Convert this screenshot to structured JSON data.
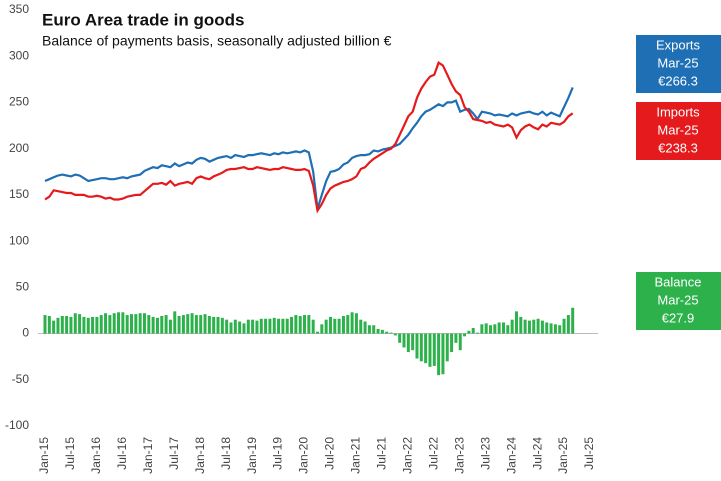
{
  "chart_data": {
    "type": "line-bar",
    "title": "Euro Area trade in goods",
    "subtitle": "Balance of payments basis, seasonally adjusted billion €",
    "categories": [
      "Jan-15",
      null,
      null,
      null,
      null,
      null,
      "Jul-15",
      null,
      null,
      null,
      null,
      null,
      "Jan-16",
      null,
      null,
      null,
      null,
      null,
      "Jul-16",
      null,
      null,
      null,
      null,
      null,
      "Jan-17",
      null,
      null,
      null,
      null,
      null,
      "Jul-17",
      null,
      null,
      null,
      null,
      null,
      "Jan-18",
      null,
      null,
      null,
      null,
      null,
      "Jul-18",
      null,
      null,
      null,
      null,
      null,
      "Jan-19",
      null,
      null,
      null,
      null,
      null,
      "Jul-19",
      null,
      null,
      null,
      null,
      null,
      "Jan-20",
      null,
      null,
      null,
      null,
      null,
      "Jul-20",
      null,
      null,
      null,
      null,
      null,
      "Jan-21",
      null,
      null,
      null,
      null,
      null,
      "Jul-21",
      null,
      null,
      null,
      null,
      null,
      "Jan-22",
      null,
      null,
      null,
      null,
      null,
      "Jul-22",
      null,
      null,
      null,
      null,
      null,
      "Jan-23",
      null,
      null,
      null,
      null,
      null,
      "Jul-23",
      null,
      null,
      null,
      null,
      null,
      "Jan-24",
      null,
      null,
      null,
      null,
      null,
      "Jul-24",
      null,
      null,
      null,
      null,
      null,
      "Jan-25",
      null,
      null,
      null,
      null,
      null,
      "Jul-25"
    ],
    "series": [
      {
        "name": "Exports",
        "kind": "line",
        "color": "#1f6fb5",
        "values": [
          165,
          167,
          169,
          171,
          172,
          171,
          170,
          172,
          171,
          168,
          165,
          166,
          167,
          168,
          168,
          167,
          167,
          168,
          169,
          168,
          170,
          171,
          172,
          176,
          178,
          180,
          179,
          182,
          181,
          180,
          184,
          181,
          183,
          185,
          184,
          188,
          190,
          189,
          186,
          188,
          190,
          191,
          192,
          190,
          193,
          192,
          191,
          193,
          193,
          194,
          195,
          194,
          193,
          195,
          194,
          196,
          195,
          196,
          197,
          196,
          198,
          196,
          175,
          135,
          150,
          165,
          175,
          176,
          178,
          183,
          185,
          190,
          192,
          193,
          193,
          194,
          198,
          197,
          199,
          200,
          201,
          203,
          205,
          210,
          215,
          222,
          228,
          235,
          240,
          242,
          245,
          248,
          246,
          250,
          250,
          252,
          240,
          242,
          243,
          238,
          232,
          240,
          239,
          238,
          236,
          237,
          236,
          235,
          238,
          236,
          238,
          239,
          240,
          238,
          237,
          240,
          236,
          239,
          237,
          235,
          245,
          255,
          266.3,
          null,
          null,
          null,
          null
        ]
      },
      {
        "name": "Imports",
        "kind": "line",
        "color": "#e41a1c",
        "values": [
          145,
          148,
          155,
          154,
          153,
          152,
          152,
          150,
          150,
          150,
          148,
          148,
          149,
          148,
          146,
          147,
          145,
          145,
          146,
          148,
          149,
          150,
          150,
          154,
          158,
          162,
          162,
          163,
          161,
          165,
          160,
          162,
          163,
          164,
          162,
          168,
          170,
          168,
          167,
          170,
          172,
          174,
          177,
          178,
          178,
          179,
          180,
          178,
          178,
          180,
          179,
          178,
          177,
          178,
          178,
          180,
          179,
          178,
          177,
          177,
          178,
          176,
          160,
          133,
          140,
          150,
          157,
          160,
          162,
          164,
          165,
          167,
          170,
          178,
          180,
          185,
          189,
          192,
          195,
          198,
          200,
          205,
          215,
          225,
          235,
          240,
          255,
          265,
          272,
          278,
          280,
          293,
          290,
          280,
          270,
          262,
          258,
          245,
          240,
          232,
          231,
          230,
          228,
          229,
          226,
          225,
          224,
          226,
          223,
          212,
          220,
          224,
          226,
          223,
          221,
          226,
          224,
          228,
          227,
          226,
          229,
          235,
          238.3,
          null,
          null,
          null,
          null
        ]
      },
      {
        "name": "Balance",
        "kind": "bar",
        "color": "#2db14b",
        "values": [
          20,
          19,
          14,
          17,
          19,
          19,
          18,
          22,
          21,
          18,
          17,
          18,
          18,
          20,
          22,
          20,
          22,
          23,
          23,
          20,
          21,
          21,
          22,
          22,
          20,
          18,
          17,
          19,
          20,
          15,
          24,
          19,
          20,
          21,
          22,
          20,
          20,
          21,
          19,
          18,
          18,
          17,
          15,
          12,
          15,
          13,
          11,
          15,
          15,
          14,
          16,
          16,
          16,
          17,
          16,
          16,
          16,
          18,
          20,
          19,
          20,
          20,
          15,
          2,
          10,
          15,
          18,
          16,
          16,
          19,
          20,
          23,
          22,
          15,
          13,
          9,
          9,
          5,
          4,
          2,
          1,
          -2,
          -10,
          -15,
          -20,
          -18,
          -27,
          -30,
          -32,
          -36,
          -35,
          -45,
          -44,
          -30,
          -20,
          -10,
          -18,
          -3,
          3,
          6,
          1,
          10,
          11,
          9,
          10,
          12,
          12,
          9,
          15,
          24,
          18,
          15,
          14,
          15,
          16,
          14,
          12,
          11,
          10,
          9,
          16,
          20,
          27.9,
          null,
          null,
          null,
          null
        ]
      }
    ],
    "ylim": [
      -100,
      350
    ],
    "yticks": [
      -100,
      -50,
      0,
      50,
      100,
      150,
      200,
      250,
      300,
      350
    ],
    "annotations": [
      {
        "label": "Exports",
        "date": "Mar-25",
        "value_label": "€266.3",
        "color": "#1f6fb5"
      },
      {
        "label": "Imports",
        "date": "Mar-25",
        "value_label": "€238.3",
        "color": "#e41a1c"
      },
      {
        "label": "Balance",
        "date": "Mar-25",
        "value_label": "€27.9",
        "color": "#2db14b"
      }
    ]
  }
}
